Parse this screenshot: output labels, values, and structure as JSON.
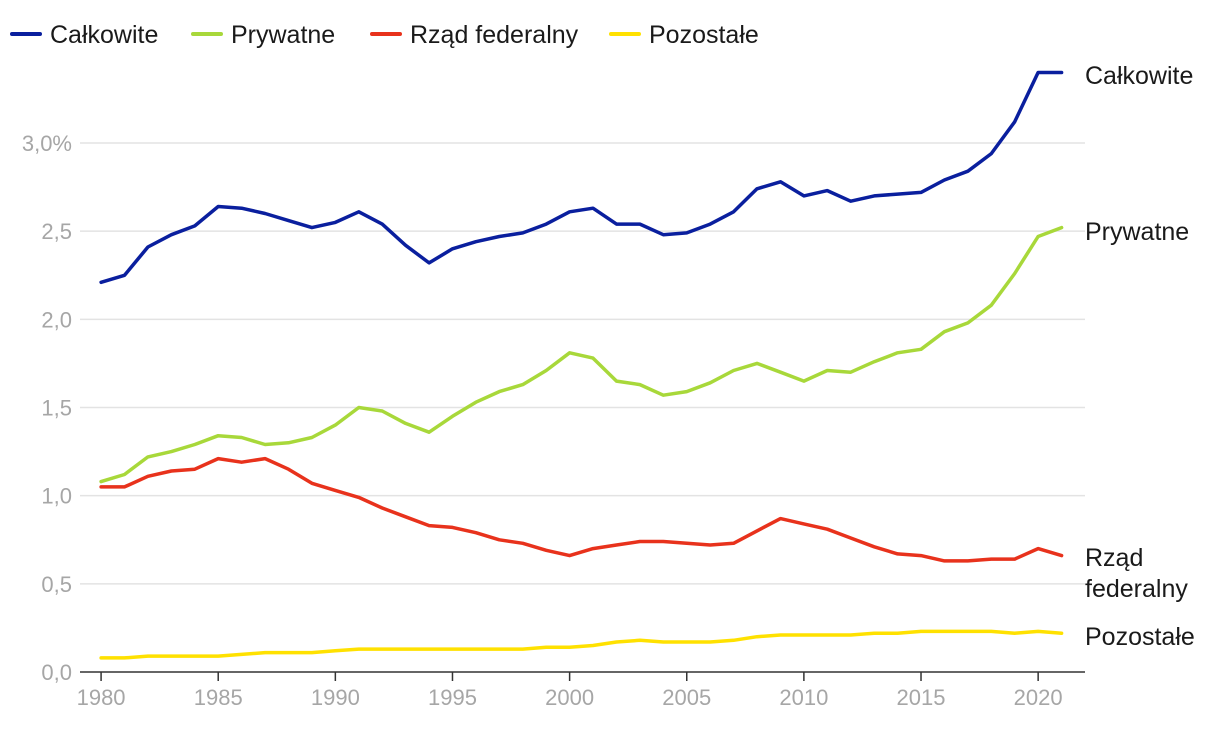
{
  "chart_data": {
    "type": "line",
    "title": "",
    "xlabel": "",
    "ylabel": "",
    "x": [
      1980,
      1981,
      1982,
      1983,
      1984,
      1985,
      1986,
      1987,
      1988,
      1989,
      1990,
      1991,
      1992,
      1993,
      1994,
      1995,
      1996,
      1997,
      1998,
      1999,
      2000,
      2001,
      2002,
      2003,
      2004,
      2005,
      2006,
      2007,
      2008,
      2009,
      2010,
      2011,
      2012,
      2013,
      2014,
      2015,
      2016,
      2017,
      2018,
      2019,
      2020,
      2021
    ],
    "xlim": [
      1980,
      2021
    ],
    "ylim": [
      0,
      3.4
    ],
    "x_ticks": [
      {
        "value": 1980,
        "label": "1980"
      },
      {
        "value": 1985,
        "label": "1985"
      },
      {
        "value": 1990,
        "label": "1990"
      },
      {
        "value": 1995,
        "label": "1995"
      },
      {
        "value": 2000,
        "label": "2000"
      },
      {
        "value": 2005,
        "label": "2005"
      },
      {
        "value": 2010,
        "label": "2010"
      },
      {
        "value": 2015,
        "label": "2015"
      },
      {
        "value": 2020,
        "label": "2020"
      }
    ],
    "y_ticks": [
      {
        "value": 0.0,
        "label": "0,0"
      },
      {
        "value": 0.5,
        "label": "0,5"
      },
      {
        "value": 1.0,
        "label": "1,0"
      },
      {
        "value": 1.5,
        "label": "1,5"
      },
      {
        "value": 2.0,
        "label": "2,0"
      },
      {
        "value": 2.5,
        "label": "2,5"
      },
      {
        "value": 3.0,
        "label": "3,0%"
      }
    ],
    "legend_position": "top-left",
    "series": [
      {
        "name": "Całkowite",
        "color": "#0a1f9e",
        "end_label": [
          "Całkowite"
        ],
        "values": [
          2.21,
          2.25,
          2.41,
          2.48,
          2.53,
          2.64,
          2.63,
          2.6,
          2.56,
          2.52,
          2.55,
          2.61,
          2.54,
          2.42,
          2.32,
          2.4,
          2.44,
          2.47,
          2.49,
          2.54,
          2.61,
          2.63,
          2.54,
          2.54,
          2.48,
          2.49,
          2.54,
          2.61,
          2.74,
          2.78,
          2.7,
          2.73,
          2.67,
          2.7,
          2.71,
          2.72,
          2.79,
          2.84,
          2.94,
          3.12,
          3.4,
          3.4
        ]
      },
      {
        "name": "Prywatne",
        "color": "#a8d83a",
        "end_label": [
          "Prywatne"
        ],
        "values": [
          1.08,
          1.12,
          1.22,
          1.25,
          1.29,
          1.34,
          1.33,
          1.29,
          1.3,
          1.33,
          1.4,
          1.5,
          1.48,
          1.41,
          1.36,
          1.45,
          1.53,
          1.59,
          1.63,
          1.71,
          1.81,
          1.78,
          1.65,
          1.63,
          1.57,
          1.59,
          1.64,
          1.71,
          1.75,
          1.7,
          1.65,
          1.71,
          1.7,
          1.76,
          1.81,
          1.83,
          1.93,
          1.98,
          2.08,
          2.26,
          2.47,
          2.52
        ]
      },
      {
        "name": "Rząd federalny",
        "color": "#e8321c",
        "end_label": [
          "Rząd",
          "federalny"
        ],
        "values": [
          1.05,
          1.05,
          1.11,
          1.14,
          1.15,
          1.21,
          1.19,
          1.21,
          1.15,
          1.07,
          1.03,
          0.99,
          0.93,
          0.88,
          0.83,
          0.82,
          0.79,
          0.75,
          0.73,
          0.69,
          0.66,
          0.7,
          0.72,
          0.74,
          0.74,
          0.73,
          0.72,
          0.73,
          0.8,
          0.87,
          0.84,
          0.81,
          0.76,
          0.71,
          0.67,
          0.66,
          0.63,
          0.63,
          0.64,
          0.64,
          0.7,
          0.66
        ]
      },
      {
        "name": "Pozostałe",
        "color": "#ffe100",
        "end_label": [
          "Pozostałe"
        ],
        "values": [
          0.08,
          0.08,
          0.09,
          0.09,
          0.09,
          0.09,
          0.1,
          0.11,
          0.11,
          0.11,
          0.12,
          0.13,
          0.13,
          0.13,
          0.13,
          0.13,
          0.13,
          0.13,
          0.13,
          0.14,
          0.14,
          0.15,
          0.17,
          0.18,
          0.17,
          0.17,
          0.17,
          0.18,
          0.2,
          0.21,
          0.21,
          0.21,
          0.21,
          0.22,
          0.22,
          0.23,
          0.23,
          0.23,
          0.23,
          0.22,
          0.23,
          0.22
        ]
      }
    ]
  }
}
